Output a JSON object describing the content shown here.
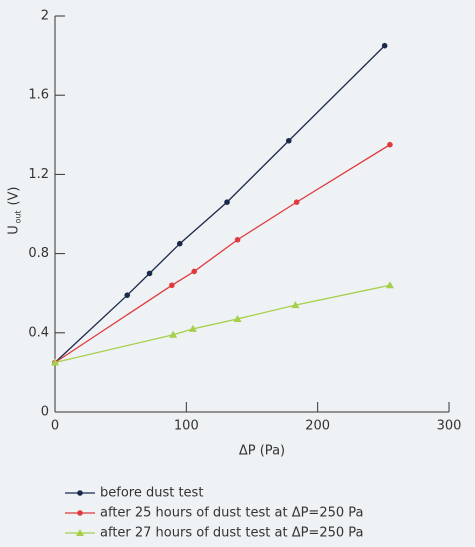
{
  "chart_data": {
    "type": "line",
    "xlabel": "ΔP (Pa)",
    "ylabel": "U",
    "ylabel_sub": "out",
    "ylabel_unit": "(V)",
    "xlim": [
      0,
      300
    ],
    "xticks": [
      0,
      100,
      200,
      300
    ],
    "ylim": [
      0,
      2
    ],
    "yticks": [
      0,
      {
        "value": 0.4,
        "label": "0.4"
      },
      {
        "value": 0.8,
        "label": "0.8"
      },
      {
        "value": 1.2,
        "label": "1.2"
      },
      {
        "value": 1.6,
        "label": "1.6"
      },
      2
    ],
    "legend": "bottom",
    "series": [
      {
        "name": "before dust test",
        "color": "#1b2a4a",
        "marker": "circle",
        "x": [
          0,
          55,
          72,
          95,
          131,
          178,
          251
        ],
        "values": [
          0.25,
          0.59,
          0.7,
          0.85,
          1.06,
          1.37,
          1.85
        ]
      },
      {
        "name": "after 25 hours of dust test at ΔP=250 Pa",
        "color": "#e03a3e",
        "marker": "circle",
        "x": [
          0,
          89,
          106,
          139,
          184,
          255
        ],
        "values": [
          0.25,
          0.64,
          0.71,
          0.87,
          1.06,
          1.35
        ]
      },
      {
        "name": "after 27 hours of dust test at ΔP=250 Pa",
        "color": "#a6cf4a",
        "marker": "triangle",
        "x": [
          0,
          90,
          105,
          139,
          183,
          255
        ],
        "values": [
          0.25,
          0.39,
          0.42,
          0.47,
          0.54,
          0.64
        ]
      }
    ]
  }
}
